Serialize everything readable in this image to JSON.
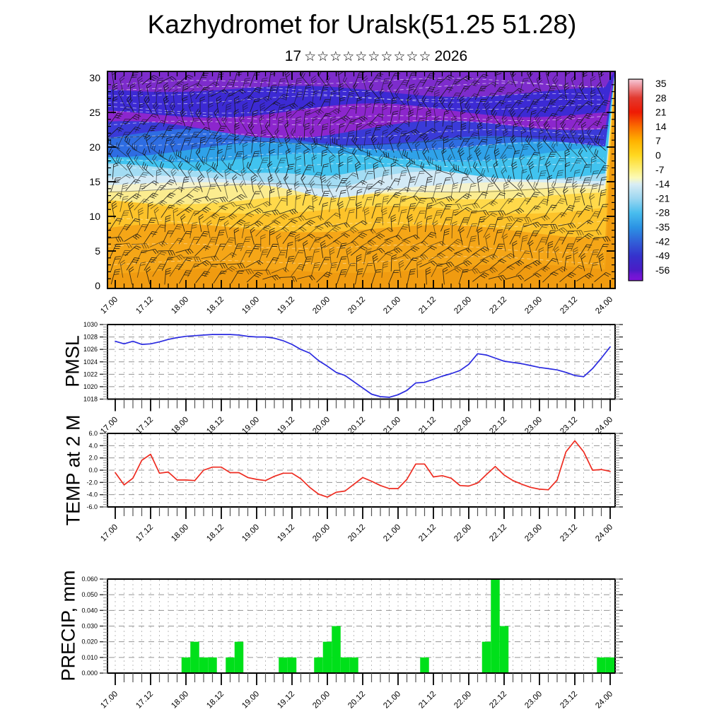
{
  "title": "Kazhydromet for Uralsk(51.25 51.28)",
  "subtitle": {
    "day": "17",
    "stars": "☆☆☆☆☆☆☆☆☆☆",
    "year": "2026"
  },
  "time_labels": [
    "17.00",
    "17.12",
    "18.00",
    "18.12",
    "19.00",
    "19.12",
    "20.00",
    "20.12",
    "21.00",
    "21.12",
    "22.00",
    "22.12",
    "23.00",
    "23.12",
    "24.00"
  ],
  "time_step_hours": 3,
  "chart_data": [
    {
      "id": "temp-height-cross-section",
      "type": "heatmap",
      "label": "",
      "ylim": [
        0,
        30
      ],
      "ytick_labels": [
        "30",
        "25",
        "20",
        "15",
        "10",
        "5",
        "0"
      ],
      "x_start": "17.00",
      "x_end": "24.00",
      "wind_barbs": true,
      "base_color": "#f09b10",
      "bands": [
        {
          "v": 2.3,
          "color": "#f5a617"
        },
        {
          "v": 8.0,
          "color": "#fdc32a"
        },
        {
          "v": 11.2,
          "color": "#ffd94a"
        },
        {
          "v": 12.7,
          "color": "#fbec8f"
        },
        {
          "v": 13.9,
          "color": "#f5f2cb"
        },
        {
          "v": 14.6,
          "color": "#d3eaf6"
        },
        {
          "v": 15.6,
          "color": "#a3dcf3"
        },
        {
          "v": 16.6,
          "color": "#41c3ef"
        },
        {
          "v": 18.8,
          "color": "#2fa2e9"
        },
        {
          "v": 19.8,
          "color": "#2e6de2"
        },
        {
          "v": 21.2,
          "color": "#3a3ad8"
        },
        {
          "v": 22.9,
          "color": "#8c26cd"
        },
        {
          "v": 25.0,
          "color": "#3c2ad4"
        },
        {
          "v": 28.2,
          "color": "#7d2ccc"
        }
      ],
      "colorbar": {
        "tick_labels": [
          "35",
          "28",
          "21",
          "14",
          "7",
          "0",
          "-7",
          "-14",
          "-21",
          "-28",
          "-35",
          "-42",
          "-49",
          "-56"
        ],
        "tick_values": [
          35,
          28,
          21,
          14,
          7,
          0,
          -7,
          -14,
          -21,
          -28,
          -35,
          -42,
          -49,
          -56
        ],
        "stops": [
          {
            "v": 37,
            "color": "#f6ccd6"
          },
          {
            "v": 35,
            "color": "#f2a8b4"
          },
          {
            "v": 28,
            "color": "#e23a30"
          },
          {
            "v": 21,
            "color": "#ee1a04"
          },
          {
            "v": 14,
            "color": "#fa6c00"
          },
          {
            "v": 7,
            "color": "#ffb200"
          },
          {
            "v": 0,
            "color": "#ffd820"
          },
          {
            "v": -7,
            "color": "#fdf07c"
          },
          {
            "v": -11,
            "color": "#fbfab8"
          },
          {
            "v": -14,
            "color": "#d9edf4"
          },
          {
            "v": -21,
            "color": "#9dd7f1"
          },
          {
            "v": -28,
            "color": "#49bdee"
          },
          {
            "v": -35,
            "color": "#2b93e4"
          },
          {
            "v": -42,
            "color": "#3160d8"
          },
          {
            "v": -49,
            "color": "#3532cc"
          },
          {
            "v": -56,
            "color": "#4b1cc6"
          },
          {
            "v": -58,
            "color": "#6a17d1"
          },
          {
            "v": -61,
            "color": "#8013d9"
          }
        ]
      }
    },
    {
      "id": "pmsl",
      "type": "line",
      "label": "PMSL",
      "ylim": [
        1018,
        1030
      ],
      "ytick_labels": [
        "1030",
        "1028",
        "1026",
        "1024",
        "1022",
        "1020",
        "1018"
      ],
      "color": "#2a2ae0",
      "values": [
        1027.3,
        1026.9,
        1027.3,
        1026.8,
        1026.9,
        1027.2,
        1027.6,
        1027.9,
        1028.1,
        1028.2,
        1028.3,
        1028.4,
        1028.4,
        1028.4,
        1028.3,
        1028.1,
        1028.0,
        1028.0,
        1027.8,
        1027.4,
        1026.8,
        1026.0,
        1025.4,
        1024.2,
        1023.3,
        1022.3,
        1021.8,
        1020.8,
        1019.8,
        1018.8,
        1018.4,
        1018.3,
        1018.7,
        1019.4,
        1020.6,
        1020.7,
        1021.2,
        1021.7,
        1022.1,
        1022.6,
        1023.6,
        1025.3,
        1025.1,
        1024.6,
        1024.1,
        1023.9,
        1023.7,
        1023.4,
        1023.1,
        1022.9,
        1022.7,
        1022.3,
        1021.8,
        1021.6,
        1022.9,
        1024.6,
        1026.4
      ]
    },
    {
      "id": "temp2m",
      "type": "line",
      "label": "TEMP at 2 M",
      "ylim": [
        -6,
        6
      ],
      "ytick_labels": [
        "6.0",
        "4.0",
        "2.0",
        "0.0",
        "-2.0",
        "-4.0",
        "-6.0"
      ],
      "color": "#ee2b20",
      "values": [
        -0.4,
        -2.4,
        -1.3,
        1.6,
        2.6,
        -0.5,
        -0.3,
        -1.6,
        -1.6,
        -1.7,
        0.0,
        0.5,
        0.5,
        -0.4,
        -0.4,
        -1.2,
        -1.5,
        -1.7,
        -1.0,
        -0.5,
        -0.5,
        -1.4,
        -2.8,
        -3.9,
        -4.4,
        -3.6,
        -3.4,
        -2.3,
        -1.2,
        -1.8,
        -2.5,
        -3.0,
        -3.0,
        -1.5,
        1.0,
        1.0,
        -1.1,
        -0.9,
        -1.3,
        -2.5,
        -2.6,
        -2.1,
        -0.7,
        0.6,
        -0.8,
        -1.7,
        -2.3,
        -2.8,
        -3.1,
        -3.2,
        -1.6,
        3.0,
        4.8,
        3.0,
        0.0,
        0.1,
        -0.2
      ]
    },
    {
      "id": "precip",
      "type": "bar",
      "label": "PRECIP, mm",
      "ylim": [
        0,
        0.06
      ],
      "ytick_labels": [
        "0.060",
        "0.050",
        "0.040",
        "0.030",
        "0.020",
        "0.010",
        "0.000"
      ],
      "color": "#00e01a",
      "values": [
        0,
        0,
        0,
        0,
        0,
        0,
        0,
        0,
        0.01,
        0.02,
        0.01,
        0.01,
        0,
        0.01,
        0.02,
        0,
        0,
        0,
        0,
        0.01,
        0.01,
        0,
        0,
        0.01,
        0.02,
        0.03,
        0.01,
        0.01,
        0,
        0,
        0,
        0,
        0,
        0,
        0,
        0.01,
        0,
        0,
        0,
        0,
        0,
        0,
        0.02,
        0.06,
        0.03,
        0,
        0,
        0,
        0,
        0,
        0,
        0,
        0,
        0,
        0,
        0.01,
        0.01
      ]
    }
  ]
}
